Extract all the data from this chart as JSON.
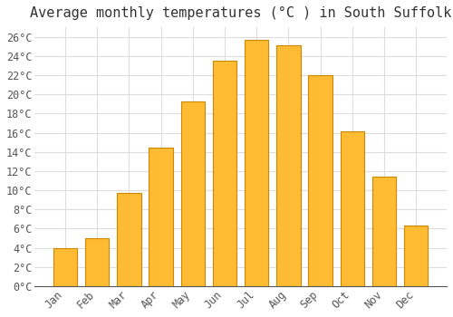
{
  "title": "Average monthly temperatures (°C ) in South Suffolk",
  "months": [
    "Jan",
    "Feb",
    "Mar",
    "Apr",
    "May",
    "Jun",
    "Jul",
    "Aug",
    "Sep",
    "Oct",
    "Nov",
    "Dec"
  ],
  "values": [
    4.0,
    5.0,
    9.7,
    14.4,
    19.3,
    23.5,
    25.7,
    25.1,
    22.0,
    16.1,
    11.4,
    6.3
  ],
  "bar_color": "#FFBB33",
  "bar_edge_color": "#CC8800",
  "background_color": "#FFFFFF",
  "grid_color": "#DDDDDD",
  "ylim": [
    0,
    27
  ],
  "ytick_step": 2,
  "title_fontsize": 11,
  "tick_fontsize": 8.5,
  "font_family": "monospace"
}
